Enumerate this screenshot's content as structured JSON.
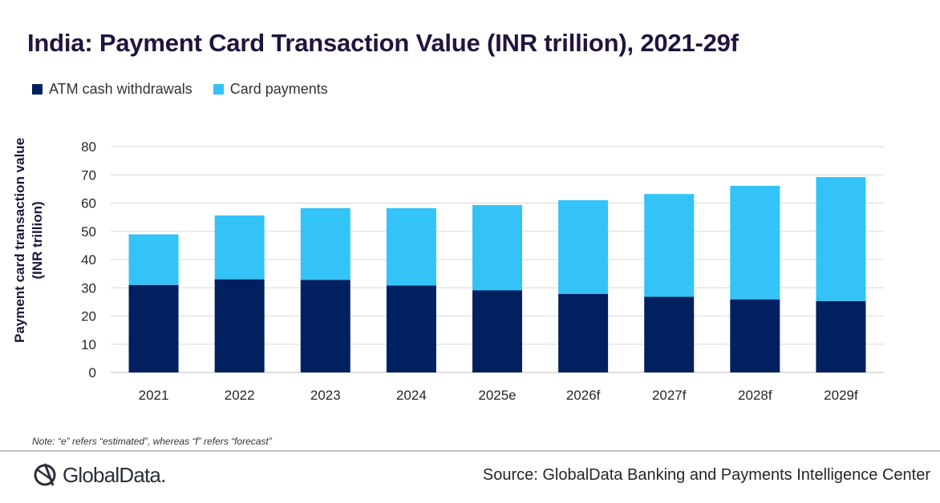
{
  "title": "India: Payment Card Transaction Value (INR trillion), 2021-29f",
  "legend": [
    {
      "label": "ATM cash withdrawals",
      "color": "#002060"
    },
    {
      "label": "Card payments",
      "color": "#33c3f7"
    }
  ],
  "ylabel_line1": "Payment card transaction value",
  "ylabel_line2": "(INR trillion)",
  "note": "Note: “e” refers “estimated”, whereas “f” refers “forecast”",
  "logo": {
    "text": "GlobalData.",
    "icon": "globaldata-logo-icon"
  },
  "source": "Source: GlobalData Banking and Payments Intelligence Center",
  "chart_data": {
    "type": "bar",
    "stacked": true,
    "title": "India: Payment Card Transaction Value (INR trillion), 2021-29f",
    "ylabel": "Payment card transaction value (INR trillion)",
    "xlabel": "",
    "categories": [
      "2021",
      "2022",
      "2023",
      "2024",
      "2025e",
      "2026f",
      "2027f",
      "2028f",
      "2029f"
    ],
    "series": [
      {
        "name": "ATM cash withdrawals",
        "color": "#002060",
        "values": [
          31.0,
          33.0,
          32.8,
          30.8,
          29.1,
          27.8,
          26.8,
          25.9,
          25.3
        ]
      },
      {
        "name": "Card payments",
        "color": "#33c3f7",
        "values": [
          17.9,
          22.6,
          25.4,
          27.4,
          30.2,
          33.2,
          36.4,
          40.2,
          43.9
        ]
      }
    ],
    "ylim": [
      0,
      80
    ],
    "yticks": [
      0,
      10,
      20,
      30,
      40,
      50,
      60,
      70,
      80
    ],
    "grid": true,
    "legend_position": "top-left"
  }
}
